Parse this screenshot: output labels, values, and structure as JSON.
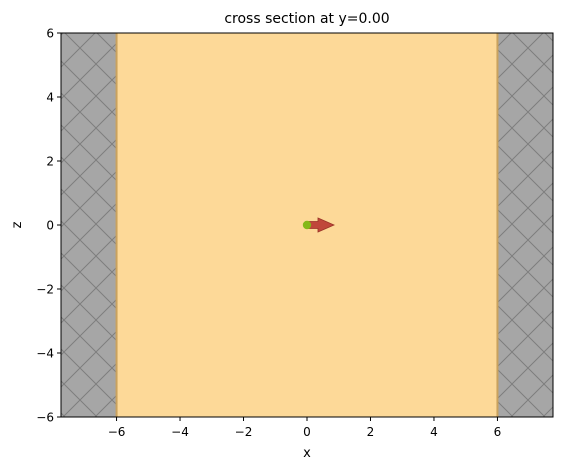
{
  "chart_data": {
    "type": "other",
    "title": "cross section at y=0.00",
    "xlabel": "x",
    "ylabel": "z",
    "xlim": [
      -7.75,
      7.75
    ],
    "ylim": [
      -6,
      6
    ],
    "xticks": [
      -6,
      -4,
      -2,
      0,
      2,
      4,
      6
    ],
    "xtick_labels": [
      "−6",
      "−4",
      "−2",
      "0",
      "2",
      "4",
      "6"
    ],
    "yticks": [
      -6,
      -4,
      -2,
      0,
      2,
      4,
      6
    ],
    "ytick_labels": [
      "−6",
      "−4",
      "−2",
      "0",
      "2",
      "4",
      "6"
    ],
    "grid": false,
    "regions": [
      {
        "kind": "medium",
        "x": [
          -6,
          6
        ],
        "z": [
          -6,
          6
        ],
        "color": "#fdd998"
      },
      {
        "kind": "absorbing-boundary",
        "side": "left",
        "x": [
          -7.75,
          -6
        ],
        "z": [
          -6,
          6
        ],
        "color": "#a6a6a6",
        "hatch": "crosshatch"
      },
      {
        "kind": "absorbing-boundary",
        "side": "right",
        "x": [
          6,
          7.75
        ],
        "z": [
          -6,
          6
        ],
        "color": "#a6a6a6",
        "hatch": "crosshatch"
      }
    ],
    "markers": [
      {
        "kind": "source-point",
        "x": 0,
        "z": 0,
        "color": "#84b819"
      },
      {
        "kind": "direction-arrow",
        "x": 0,
        "z": 0,
        "dx": 0.85,
        "dz": 0,
        "color": "#c0473a"
      }
    ]
  }
}
